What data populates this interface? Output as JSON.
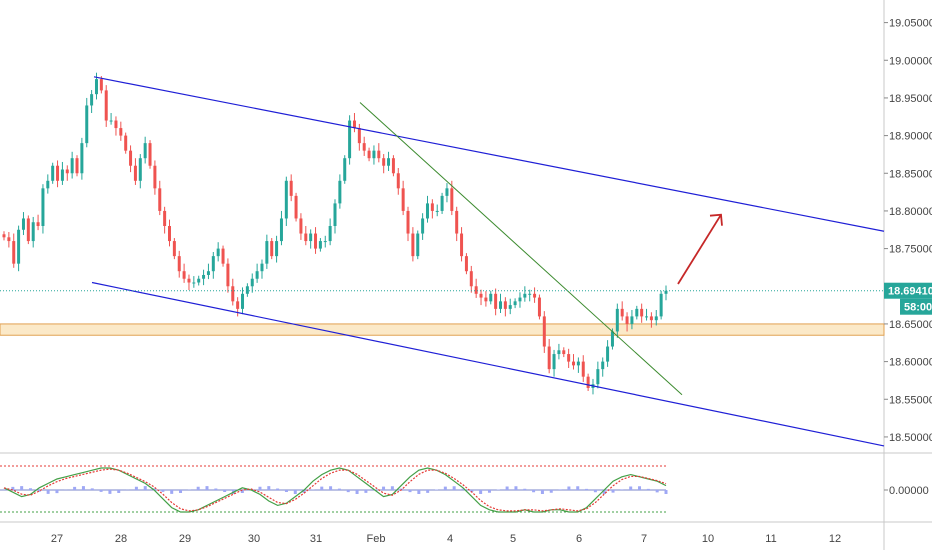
{
  "chart_data": {
    "type": "candlestick",
    "title": "",
    "colors": {
      "up": "#26a69a",
      "down": "#ef5350",
      "channel": "#1f1fd6",
      "trendline": "#3b8a2e",
      "support_zone_fill": "#fbe9c8",
      "support_zone_border": "#e0a050",
      "arrow": "#c62828",
      "price_line": "#26a69a",
      "price_tag": "#26a69a",
      "osc_upper": "#e53935",
      "osc_lower": "#43a047",
      "osc_fill": "#9fa8f5"
    },
    "y_axis": {
      "ticks": [
        "19.05000",
        "19.00000",
        "18.95000",
        "18.90000",
        "18.85000",
        "18.80000",
        "18.75000",
        "18.65000",
        "18.60000",
        "18.55000",
        "18.50000"
      ],
      "range": [
        18.48,
        19.08
      ]
    },
    "x_axis": {
      "ticks": [
        "27",
        "28",
        "29",
        "30",
        "31",
        "Feb",
        "4",
        "5",
        "6",
        "7",
        "10",
        "11",
        "12"
      ]
    },
    "last_price": "18.69410",
    "countdown": "58:00",
    "oscillator": {
      "tick": "0.00000"
    },
    "series": [
      {
        "kind": "price",
        "values": [
          18.765,
          18.76,
          18.73,
          18.775,
          18.79,
          18.76,
          18.785,
          18.78,
          18.83,
          18.84,
          18.86,
          18.84,
          18.855,
          18.85,
          18.87,
          18.85,
          18.89,
          18.94,
          18.955,
          18.975,
          18.96,
          18.92,
          18.92,
          18.91,
          18.9,
          18.88,
          18.86,
          18.84,
          18.87,
          18.89,
          18.86,
          18.83,
          18.8,
          18.78,
          18.76,
          18.74,
          18.72,
          18.71,
          18.705,
          18.705,
          18.71,
          18.715,
          18.72,
          18.74,
          18.75,
          18.73,
          18.7,
          18.68,
          18.67,
          18.69,
          18.7,
          18.71,
          18.72,
          18.73,
          18.76,
          18.74,
          18.76,
          18.79,
          18.84,
          18.82,
          18.79,
          18.77,
          18.76,
          18.77,
          18.75,
          18.76,
          18.76,
          18.78,
          18.81,
          18.84,
          18.87,
          18.92,
          18.91,
          18.89,
          18.88,
          18.87,
          18.88,
          18.87,
          18.86,
          18.87,
          18.85,
          18.83,
          18.8,
          18.77,
          18.74,
          18.77,
          18.79,
          18.81,
          18.8,
          18.8,
          18.82,
          18.83,
          18.8,
          18.77,
          18.74,
          18.72,
          18.7,
          18.69,
          18.685,
          18.68,
          18.69,
          18.67,
          18.68,
          18.67,
          18.675,
          18.68,
          18.685,
          18.69,
          18.69,
          18.685,
          18.66,
          18.62,
          18.59,
          18.61,
          18.615,
          18.61,
          18.6,
          18.595,
          18.6,
          18.58,
          18.565,
          18.57,
          18.59,
          18.6,
          18.62,
          18.64,
          18.67,
          18.66,
          18.65,
          18.66,
          18.67,
          18.66,
          18.66,
          18.655,
          18.66,
          18.69,
          18.694
        ]
      },
      {
        "kind": "oscillator",
        "values": [
          0.1,
          -0.1,
          -0.3,
          -0.2,
          0.1,
          0.3,
          0.5,
          0.6,
          0.7,
          0.8,
          0.9,
          1.0,
          1.0,
          0.9,
          0.7,
          0.5,
          0.3,
          0.0,
          -0.4,
          -0.8,
          -1.0,
          -1.0,
          -0.9,
          -0.7,
          -0.5,
          -0.3,
          -0.1,
          0.1,
          0.0,
          -0.2,
          -0.5,
          -0.7,
          -0.6,
          -0.3,
          0.0,
          0.4,
          0.7,
          0.9,
          1.0,
          0.9,
          0.6,
          0.3,
          0.0,
          -0.3,
          -0.2,
          0.2,
          0.6,
          0.9,
          1.0,
          0.9,
          0.7,
          0.4,
          0.1,
          -0.3,
          -0.7,
          -0.9,
          -1.0,
          -1.0,
          -1.0,
          -0.9,
          -1.0,
          -1.0,
          -0.9,
          -0.9,
          -1.0,
          -1.0,
          -0.8,
          -0.4,
          0.0,
          0.4,
          0.6,
          0.7,
          0.6,
          0.5,
          0.4,
          0.2
        ]
      }
    ]
  }
}
